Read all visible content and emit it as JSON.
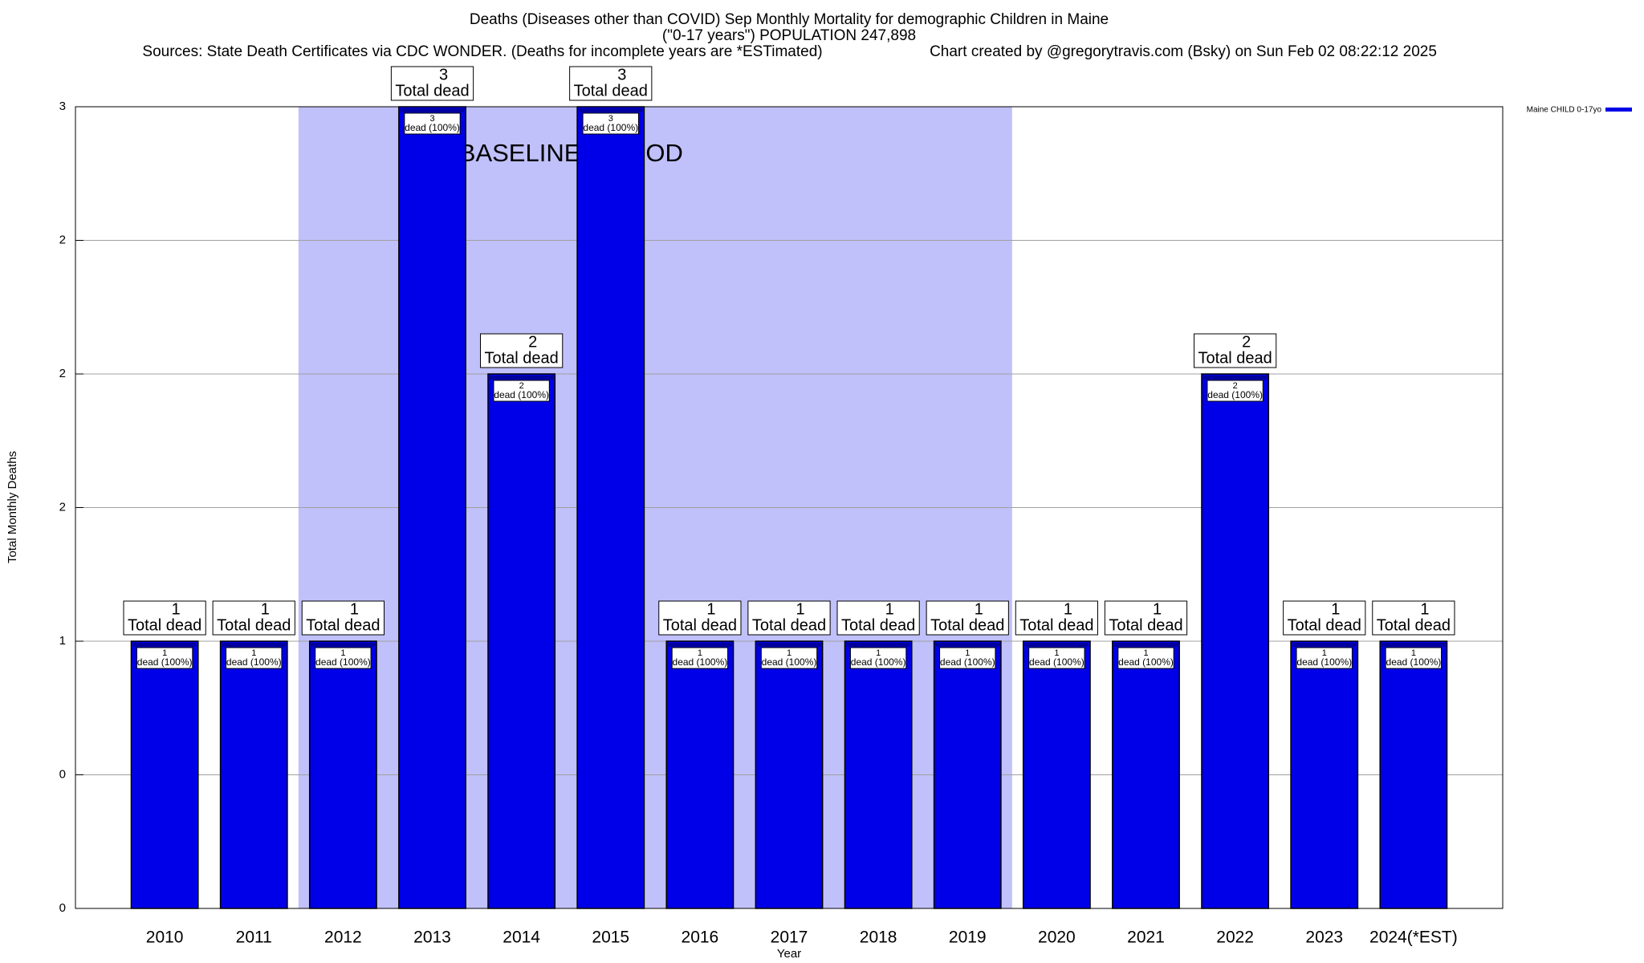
{
  "chart_data": {
    "type": "bar",
    "title": "Deaths (Diseases other than COVID) Sep Monthly Mortality for demographic Children in Maine",
    "subtitle": "(\"0-17 years\") POPULATION 247,898",
    "source": "Sources: State Death Certificates via CDC WONDER. (Deaths for incomplete years are *ESTimated)",
    "credit": "Chart created by @gregorytravis.com (Bsky) on Sun Feb 02 08:22:12 2025",
    "x_label": "Year",
    "y_label": "Total Monthly Deaths",
    "categories": [
      "2010",
      "2011",
      "2012",
      "2013",
      "2014",
      "2015",
      "2016",
      "2017",
      "2018",
      "2019",
      "2020",
      "2021",
      "2022",
      "2023",
      "2024(*EST)"
    ],
    "series": [
      {
        "name": "Maine CHILD 0-17yo",
        "color": "#0000e8",
        "values": [
          1,
          1,
          1,
          3,
          2,
          3,
          1,
          1,
          1,
          1,
          1,
          1,
          2,
          1,
          1
        ]
      }
    ],
    "total_label": "Total dead",
    "inner_label": "dead (100%)",
    "ylim": [
      0,
      3
    ],
    "yticks": [
      0,
      {
        "value": 0.5,
        "label": "0"
      },
      1,
      {
        "value": 1.5,
        "label": "2"
      },
      2,
      {
        "value": 2.5,
        "label": "2"
      },
      3
    ],
    "grid": true,
    "legend": "top-right",
    "shade": {
      "label": "BASELINE PERIOD",
      "from": "2012",
      "to": "2019",
      "color": "#c0c0fa"
    }
  }
}
